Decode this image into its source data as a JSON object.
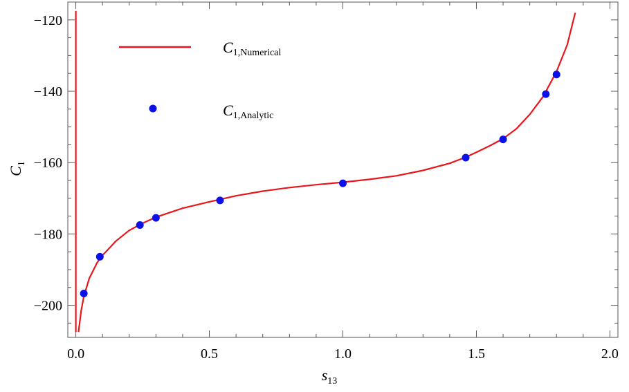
{
  "chart_data": {
    "type": "line",
    "xlabel_main": "s",
    "xlabel_sub": "13",
    "ylabel_main": "C",
    "ylabel_sub": "1",
    "xlim": [
      -0.03,
      2.03
    ],
    "ylim": [
      -209,
      -115
    ],
    "xticks": [
      0.0,
      0.5,
      1.0,
      1.5,
      2.0
    ],
    "xtick_labels": [
      "0.0",
      "0.5",
      "1.0",
      "1.5",
      "2.0"
    ],
    "yticks": [
      -120,
      -140,
      -160,
      -180,
      -200
    ],
    "ytick_labels": [
      "−120",
      "−140",
      "−160",
      "−180",
      "−200"
    ],
    "grid": false,
    "legend_position": "top-left",
    "series": [
      {
        "name_main": "C",
        "name_sub": "1,Numerical",
        "kind": "line",
        "color": "#e8151b",
        "x": [
          0.01,
          0.015,
          0.02,
          0.03,
          0.05,
          0.08,
          0.1,
          0.15,
          0.2,
          0.25,
          0.3,
          0.4,
          0.5,
          0.6,
          0.7,
          0.8,
          0.9,
          1.0,
          1.1,
          1.2,
          1.3,
          1.4,
          1.46,
          1.5,
          1.55,
          1.6,
          1.65,
          1.7,
          1.75,
          1.8,
          1.84,
          1.87
        ],
        "y": [
          -207.5,
          -204.5,
          -201.5,
          -197.5,
          -192.5,
          -188,
          -186.0,
          -182,
          -179,
          -177.0,
          -175.3,
          -172.8,
          -171.0,
          -169.3,
          -168.0,
          -167.0,
          -166.2,
          -165.5,
          -164.7,
          -163.7,
          -162.2,
          -160.2,
          -158.5,
          -157.1,
          -155.3,
          -153.3,
          -150.5,
          -146.5,
          -141.5,
          -134.5,
          -127.0,
          -118.0
        ]
      },
      {
        "name_main": "C",
        "name_sub": "1,Analytic",
        "kind": "scatter",
        "color": "#0a10e8",
        "x": [
          0.03,
          0.09,
          0.24,
          0.3,
          0.54,
          1.0,
          1.46,
          1.6,
          1.76,
          1.8
        ],
        "y": [
          -196.7,
          -186.4,
          -177.5,
          -175.5,
          -170.6,
          -165.8,
          -158.6,
          -153.5,
          -140.8,
          -135.3
        ]
      },
      {
        "name_main": "",
        "name_sub": "",
        "kind": "asymptote",
        "color": "#e8151b",
        "x": [
          0.0,
          0.0
        ],
        "y": [
          -207.5,
          -117.5
        ]
      }
    ]
  }
}
